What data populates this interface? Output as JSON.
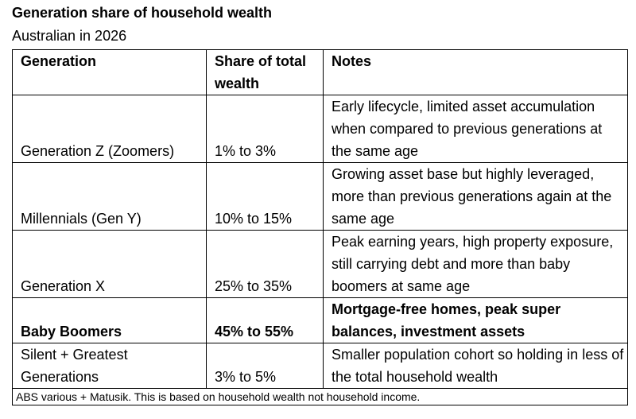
{
  "title": "Generation share of household wealth",
  "subtitle": "Australian in 2026",
  "table": {
    "header": [
      "Generation",
      "Share of total wealth",
      "Notes"
    ],
    "rows": [
      [
        "Generation Z (Zoomers)",
        "1% to 3%",
        "Early lifecycle, limited asset accumulation when compared to previous generations at the same age"
      ],
      [
        "Millennials (Gen Y)",
        "10% to 15%",
        "Growing asset base but highly leveraged, more than previous generations again at the same age"
      ],
      [
        "Generation X",
        "25% to 35%",
        "Peak earning years, high property exposure, still carrying debt and more than baby boomers at same age"
      ],
      [
        "Baby Boomers",
        "45% to 55%",
        "Mortgage-free homes, peak super balances, investment assets"
      ],
      [
        "Silent + Greatest Generations",
        "3% to 5%",
        "Smaller population cohort so holding in less of the total household wealth"
      ]
    ],
    "footer": "ABS various + Matusik.  This is based on household wealth not household income."
  }
}
